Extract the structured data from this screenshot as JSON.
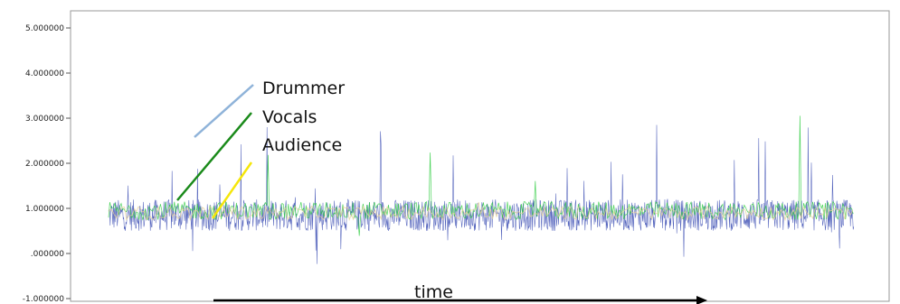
{
  "chart_data": {
    "type": "line",
    "title": "",
    "xlabel": "",
    "ylabel": "",
    "ylim": [
      -1.0,
      5.0
    ],
    "y_ticks": [
      {
        "value": 5.0,
        "label": "5.000000"
      },
      {
        "value": 4.0,
        "label": "4.000000"
      },
      {
        "value": 3.0,
        "label": "3.000000"
      },
      {
        "value": 2.0,
        "label": "2.000000"
      },
      {
        "value": 1.0,
        "label": "1.000000"
      },
      {
        "value": 0.0,
        "label": ".000000"
      },
      {
        "value": -1.0,
        "label": "-1.000000"
      }
    ],
    "grid": false,
    "series": [
      {
        "name": "Drummer",
        "color": "#3f51b5",
        "baseline": 0.85,
        "spread": 0.35
      },
      {
        "name": "Vocals",
        "color": "#2ecc40",
        "baseline": 0.95,
        "spread": 0.2
      },
      {
        "name": "Audience",
        "color": "#e3cf9a",
        "baseline": 0.9,
        "spread": 0.15
      }
    ],
    "annotations": [
      {
        "text": "Drummer",
        "line_color": "#8fb3d9"
      },
      {
        "text": "Vocals",
        "line_color": "#1a8a1a"
      },
      {
        "text": "Audience",
        "line_color": "#f5e60a"
      }
    ],
    "time_arrow_label": "time"
  }
}
